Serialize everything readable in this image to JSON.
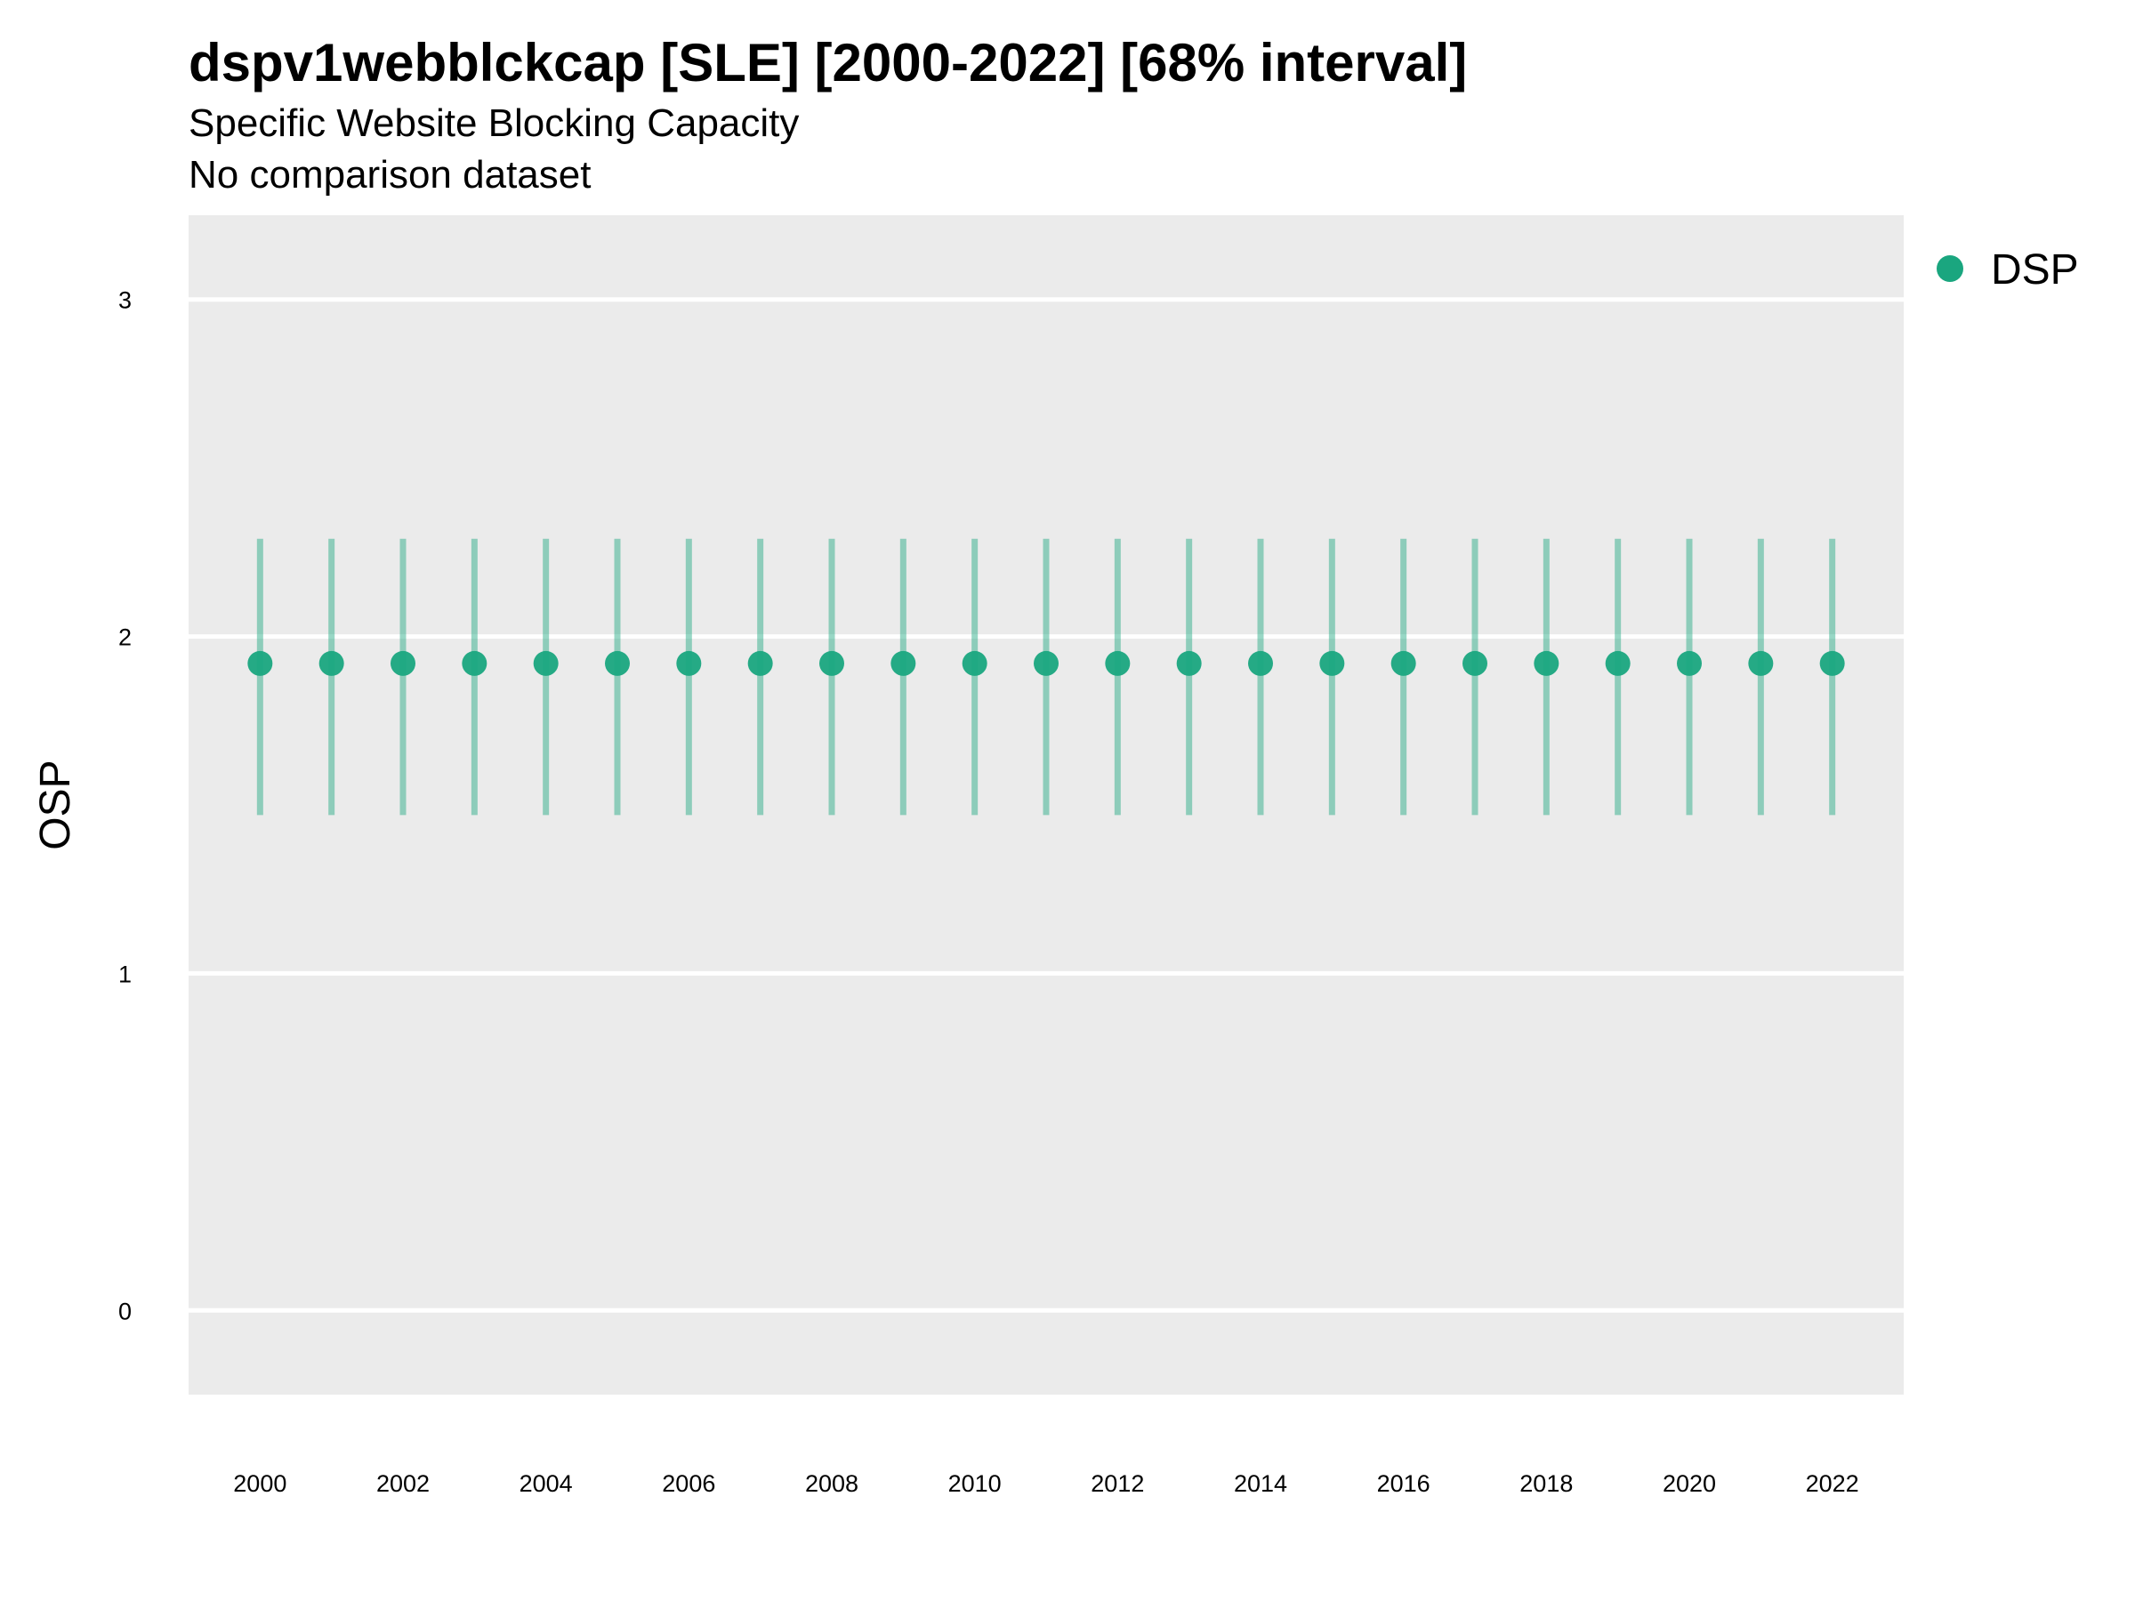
{
  "chart_data": {
    "type": "scatter",
    "title": "dspv1webblckcap [SLE] [2000-2022] [68% interval]",
    "subtitle": "Specific Website Blocking Capacity",
    "caption": "No comparison dataset",
    "xlabel": "",
    "ylabel": "OSP",
    "xlim": [
      1999,
      2023
    ],
    "ylim": [
      -0.25,
      3.25
    ],
    "x_ticks": [
      2000,
      2002,
      2004,
      2006,
      2008,
      2010,
      2012,
      2014,
      2016,
      2018,
      2020,
      2022
    ],
    "y_ticks": [
      0,
      1,
      2,
      3
    ],
    "grid": true,
    "legend_position": "right",
    "series": [
      {
        "name": "DSP",
        "color": "#1aa67f",
        "x": [
          2000,
          2001,
          2002,
          2003,
          2004,
          2005,
          2006,
          2007,
          2008,
          2009,
          2010,
          2011,
          2012,
          2013,
          2014,
          2015,
          2016,
          2017,
          2018,
          2019,
          2020,
          2021,
          2022
        ],
        "y": [
          1.92,
          1.92,
          1.92,
          1.92,
          1.92,
          1.92,
          1.92,
          1.92,
          1.92,
          1.92,
          1.92,
          1.92,
          1.92,
          1.92,
          1.92,
          1.92,
          1.92,
          1.92,
          1.92,
          1.92,
          1.92,
          1.92,
          1.92
        ],
        "lower": [
          1.47,
          1.47,
          1.47,
          1.47,
          1.47,
          1.47,
          1.47,
          1.47,
          1.47,
          1.47,
          1.47,
          1.47,
          1.47,
          1.47,
          1.47,
          1.47,
          1.47,
          1.47,
          1.47,
          1.47,
          1.47,
          1.47,
          1.47
        ],
        "upper": [
          2.29,
          2.29,
          2.29,
          2.29,
          2.29,
          2.29,
          2.29,
          2.29,
          2.29,
          2.29,
          2.29,
          2.29,
          2.29,
          2.29,
          2.29,
          2.29,
          2.29,
          2.29,
          2.29,
          2.29,
          2.29,
          2.29,
          2.29
        ]
      }
    ]
  }
}
